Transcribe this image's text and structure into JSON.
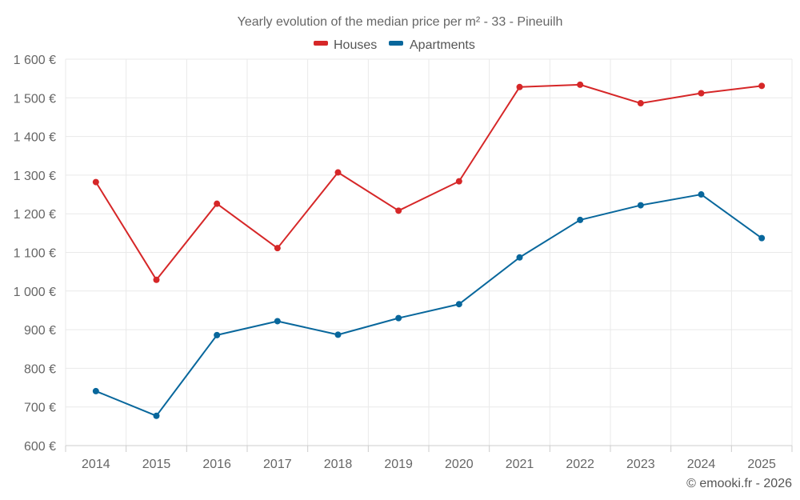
{
  "chart_data": {
    "type": "line",
    "title": "Yearly evolution of the median price per m² - 33 - Pineuilh",
    "xlabel": "",
    "ylabel": "",
    "categories": [
      "2014",
      "2015",
      "2016",
      "2017",
      "2018",
      "2019",
      "2020",
      "2021",
      "2022",
      "2023",
      "2024",
      "2025"
    ],
    "ylim": [
      600,
      1600
    ],
    "yticks": [
      600,
      700,
      800,
      900,
      1000,
      1100,
      1200,
      1300,
      1400,
      1500,
      1600
    ],
    "ytick_labels": [
      "600 €",
      "700 €",
      "800 €",
      "900 €",
      "1 000 €",
      "1 100 €",
      "1 200 €",
      "1 300 €",
      "1 400 €",
      "1 500 €",
      "1 600 €"
    ],
    "grid": true,
    "legend_position": "top-center",
    "series": [
      {
        "name": "Houses",
        "color": "#d62728",
        "values": [
          1282,
          1029,
          1226,
          1111,
          1307,
          1208,
          1284,
          1528,
          1534,
          1486,
          1512,
          1531
        ]
      },
      {
        "name": "Apartments",
        "color": "#08679c",
        "values": [
          741,
          677,
          886,
          922,
          887,
          930,
          966,
          1087,
          1184,
          1222,
          1250,
          1137
        ]
      }
    ],
    "credit": "© emooki.fr - 2026"
  }
}
